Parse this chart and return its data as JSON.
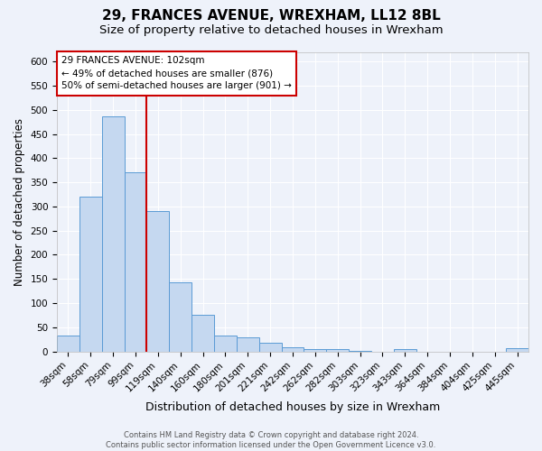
{
  "title": "29, FRANCES AVENUE, WREXHAM, LL12 8BL",
  "subtitle": "Size of property relative to detached houses in Wrexham",
  "xlabel": "Distribution of detached houses by size in Wrexham",
  "ylabel": "Number of detached properties",
  "categories": [
    "38sqm",
    "58sqm",
    "79sqm",
    "99sqm",
    "119sqm",
    "140sqm",
    "160sqm",
    "180sqm",
    "201sqm",
    "221sqm",
    "242sqm",
    "262sqm",
    "282sqm",
    "303sqm",
    "323sqm",
    "343sqm",
    "364sqm",
    "384sqm",
    "404sqm",
    "425sqm",
    "445sqm"
  ],
  "values": [
    32,
    320,
    487,
    370,
    290,
    143,
    76,
    33,
    30,
    17,
    8,
    5,
    4,
    2,
    0,
    5,
    0,
    0,
    0,
    0,
    6
  ],
  "bar_color": "#c5d8f0",
  "bar_edge_color": "#5b9bd5",
  "background_color": "#eef2fa",
  "grid_color": "#ffffff",
  "vline_color": "#cc0000",
  "vline_position": 3.5,
  "annotation_text": "29 FRANCES AVENUE: 102sqm\n← 49% of detached houses are smaller (876)\n50% of semi-detached houses are larger (901) →",
  "annotation_box_facecolor": "#ffffff",
  "annotation_box_edgecolor": "#cc0000",
  "footer_text": "Contains HM Land Registry data © Crown copyright and database right 2024.\nContains public sector information licensed under the Open Government Licence v3.0.",
  "ylim": [
    0,
    620
  ],
  "yticks": [
    0,
    50,
    100,
    150,
    200,
    250,
    300,
    350,
    400,
    450,
    500,
    550,
    600
  ],
  "title_fontsize": 11,
  "subtitle_fontsize": 9.5,
  "xlabel_fontsize": 9,
  "ylabel_fontsize": 8.5,
  "tick_fontsize": 7.5,
  "annotation_fontsize": 7.5,
  "footer_fontsize": 6,
  "figsize": [
    6.0,
    5.0
  ],
  "dpi": 100
}
